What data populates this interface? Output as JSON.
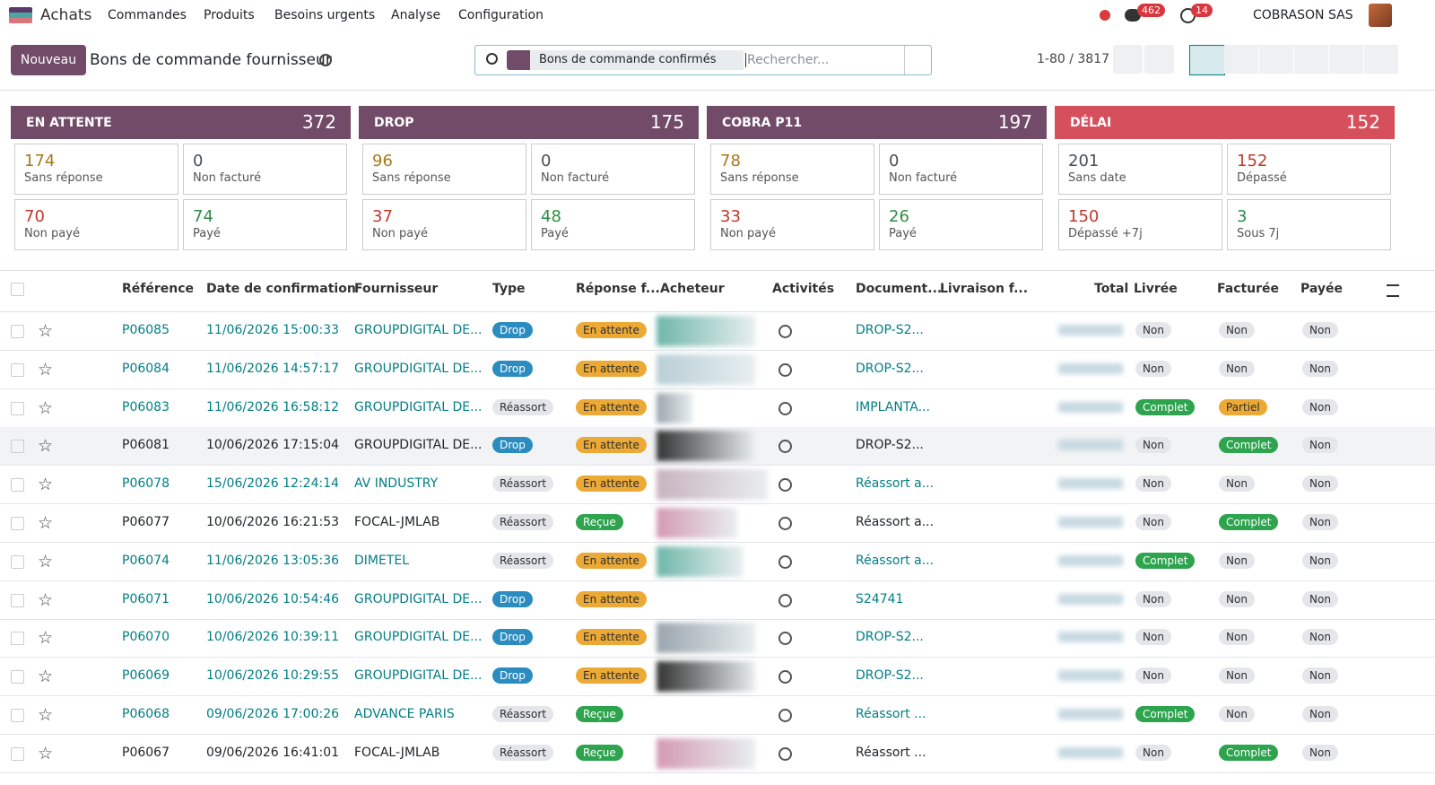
{
  "nav": {
    "app": "Achats",
    "menu": [
      "Commandes",
      "Produits",
      "Besoins urgents",
      "Analyse",
      "Configuration"
    ],
    "messages_count": 462,
    "activities_count": 14,
    "company": "COBRASON SAS"
  },
  "control": {
    "new_button": "Nouveau",
    "title": "Bons de commande fournisseur",
    "facet": "Bons de commande confirmés",
    "search_placeholder": "Rechercher...",
    "pager": "1-80 / 3817"
  },
  "dashboard": [
    {
      "title": "EN ATTENTE",
      "count": 372,
      "color": "#714b67",
      "tiles": [
        {
          "value": 174,
          "label": "Sans réponse",
          "color": "#a9791c"
        },
        {
          "value": 0,
          "label": "Non facturé",
          "color": "#495057"
        },
        {
          "value": 70,
          "label": "Non payé",
          "color": "#c0392b"
        },
        {
          "value": 74,
          "label": "Payé",
          "color": "#2e8b45"
        }
      ]
    },
    {
      "title": "DROP",
      "count": 175,
      "color": "#714b67",
      "tiles": [
        {
          "value": 96,
          "label": "Sans réponse",
          "color": "#a9791c"
        },
        {
          "value": 0,
          "label": "Non facturé",
          "color": "#495057"
        },
        {
          "value": 37,
          "label": "Non payé",
          "color": "#c0392b"
        },
        {
          "value": 48,
          "label": "Payé",
          "color": "#2e8b45"
        }
      ]
    },
    {
      "title": "COBRA P11",
      "count": 197,
      "color": "#714b67",
      "tiles": [
        {
          "value": 78,
          "label": "Sans réponse",
          "color": "#a9791c"
        },
        {
          "value": 0,
          "label": "Non facturé",
          "color": "#495057"
        },
        {
          "value": 33,
          "label": "Non payé",
          "color": "#c0392b"
        },
        {
          "value": 26,
          "label": "Payé",
          "color": "#2e8b45"
        }
      ]
    },
    {
      "title": "DÉLAI",
      "count": 152,
      "color": "#d6505c",
      "tiles": [
        {
          "value": 201,
          "label": "Sans date",
          "color": "#495057"
        },
        {
          "value": 152,
          "label": "Dépassé",
          "color": "#c0392b"
        },
        {
          "value": 150,
          "label": "Dépassé +7j",
          "color": "#c0392b"
        },
        {
          "value": 3,
          "label": "Sous 7j",
          "color": "#2e8b45"
        }
      ]
    }
  ],
  "table": {
    "headers": [
      "Référence",
      "Date de confirmation",
      "Fournisseur",
      "Type",
      "Réponse f...",
      "Acheteur",
      "Activités",
      "Document...",
      "Livraison f...",
      "Total",
      "Livrée",
      "Facturée",
      "Payée"
    ],
    "rows": [
      {
        "ref": "P06085",
        "date": "11/06/2026 15:00:33",
        "supplier": "GROUPDIGITAL DE...",
        "type": "Drop",
        "response": "En attente",
        "document": "DROP-S2...",
        "delivered": "Non",
        "invoiced": "Non",
        "paid": "Non",
        "color": "#017e84"
      },
      {
        "ref": "P06084",
        "date": "11/06/2026 14:57:17",
        "supplier": "GROUPDIGITAL DE...",
        "type": "Drop",
        "response": "En attente",
        "document": "DROP-S2...",
        "delivered": "Non",
        "invoiced": "Non",
        "paid": "Non",
        "color": "#017e84"
      },
      {
        "ref": "P06083",
        "date": "11/06/2026 16:58:12",
        "supplier": "GROUPDIGITAL DE...",
        "type": "Réassort",
        "response": "En attente",
        "document": "IMPLANTA...",
        "delivered": "Complet",
        "invoiced": "Partiel",
        "paid": "Non",
        "color": "#017e84"
      },
      {
        "ref": "P06081",
        "date": "10/06/2026 17:15:04",
        "supplier": "GROUPDIGITAL DE...",
        "type": "Drop",
        "response": "En attente",
        "document": "DROP-S2...",
        "delivered": "Non",
        "invoiced": "Complet",
        "paid": "Non",
        "color": "#212529"
      },
      {
        "ref": "P06078",
        "date": "15/06/2026 12:24:14",
        "supplier": "AV INDUSTRY",
        "type": "Réassort",
        "response": "En attente",
        "document": "Réassort a...",
        "delivered": "Non",
        "invoiced": "Non",
        "paid": "Non",
        "color": "#017e84"
      },
      {
        "ref": "P06077",
        "date": "10/06/2026 16:21:53",
        "supplier": "FOCAL-JMLAB",
        "type": "Réassort",
        "response": "Reçue",
        "document": "Réassort a...",
        "delivered": "Non",
        "invoiced": "Complet",
        "paid": "Non",
        "color": "#212529"
      },
      {
        "ref": "P06074",
        "date": "11/06/2026 13:05:36",
        "supplier": "DIMETEL",
        "type": "Réassort",
        "response": "En attente",
        "document": "Réassort a...",
        "delivered": "Complet",
        "invoiced": "Non",
        "paid": "Non",
        "color": "#017e84"
      },
      {
        "ref": "P06071",
        "date": "10/06/2026 10:54:46",
        "supplier": "GROUPDIGITAL DE...",
        "type": "Drop",
        "response": "En attente",
        "document": "S24741",
        "delivered": "Non",
        "invoiced": "Non",
        "paid": "Non",
        "color": "#017e84"
      },
      {
        "ref": "P06070",
        "date": "10/06/2026 10:39:11",
        "supplier": "GROUPDIGITAL DE...",
        "type": "Drop",
        "response": "En attente",
        "document": "DROP-S2...",
        "delivered": "Non",
        "invoiced": "Non",
        "paid": "Non",
        "color": "#017e84"
      },
      {
        "ref": "P06069",
        "date": "10/06/2026 10:29:55",
        "supplier": "GROUPDIGITAL DE...",
        "type": "Drop",
        "response": "En attente",
        "document": "DROP-S2...",
        "delivered": "Non",
        "invoiced": "Non",
        "paid": "Non",
        "color": "#017e84"
      },
      {
        "ref": "P06068",
        "date": "09/06/2026 17:00:26",
        "supplier": "ADVANCE PARIS",
        "type": "Réassort",
        "response": "Reçue",
        "document": "Réassort ...",
        "delivered": "Complet",
        "invoiced": "Non",
        "paid": "Non",
        "color": "#017e84"
      },
      {
        "ref": "P06067",
        "date": "09/06/2026 16:41:01",
        "supplier": "FOCAL-JMLAB",
        "type": "Réassort",
        "response": "Reçue",
        "document": "Réassort ...",
        "delivered": "Non",
        "invoiced": "Complet",
        "paid": "Non",
        "color": "#212529"
      }
    ]
  },
  "badge_colors": {
    "Drop": [
      "#2b8cbf",
      "#ffffff"
    ],
    "Réassort": [
      "#e4e6ea",
      "#2b2f33"
    ],
    "En attente": [
      "#eca936",
      "#2b2f33"
    ],
    "Reçue": [
      "#2ea44f",
      "#ffffff"
    ],
    "Non": [
      "#e4e6ea",
      "#2b2f33"
    ],
    "Complet": [
      "#2ea44f",
      "#ffffff"
    ],
    "Partiel": [
      "#eca936",
      "#2b2f33"
    ]
  }
}
